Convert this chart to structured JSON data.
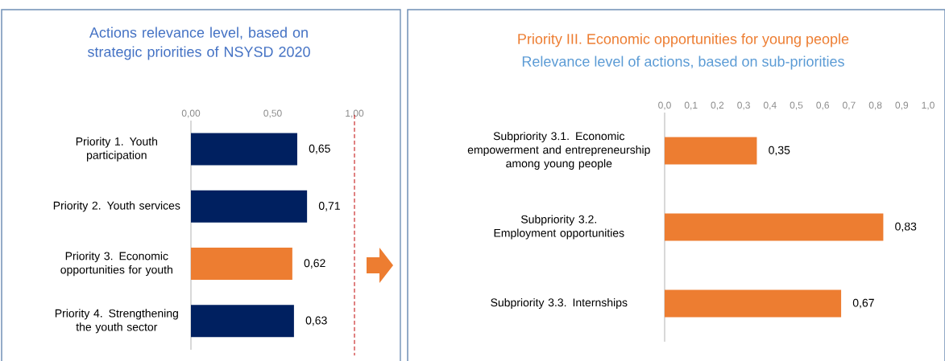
{
  "chart_data": [
    {
      "type": "bar",
      "orientation": "horizontal",
      "title": "Actions relevance level, based on strategic priorities of NSYSD 2020",
      "categories": [
        "Priority 1. Youth participation",
        "Priority 2. Youth services",
        "Priority 3. Economic opportunities for youth",
        "Priority 4. Strengthening the youth sector"
      ],
      "values": [
        0.65,
        0.71,
        0.62,
        0.63
      ],
      "colors": [
        "#002060",
        "#002060",
        "#ed7d31",
        "#002060"
      ],
      "value_labels": [
        "0,65",
        "0,71",
        "0,62",
        "0,63"
      ],
      "xlim": [
        0,
        1
      ],
      "xticks": [
        {
          "value": 0,
          "label": "0,00"
        },
        {
          "value": 0.5,
          "label": "0,50"
        },
        {
          "value": 1,
          "label": "1,00"
        }
      ],
      "ref_lines": [
        {
          "axis": "x",
          "value": 1,
          "color": "#c00000",
          "line_style": "dashed"
        }
      ],
      "grid": false
    },
    {
      "type": "bar",
      "orientation": "horizontal",
      "title": "Priority III. Economic opportunities for young people",
      "subtitle": "Relevance level of actions, based on sub-priorities",
      "categories": [
        "Subpriority 3.1. Economic empowerment and entrepreneurship among young people",
        "Subpriority 3.2. Employment opportunities",
        "Subpriority 3.3. Internships"
      ],
      "values": [
        0.35,
        0.83,
        0.67
      ],
      "colors": [
        "#ed7d31",
        "#ed7d31",
        "#ed7d31"
      ],
      "value_labels": [
        "0,35",
        "0,83",
        "0,67"
      ],
      "xlim": [
        0,
        1
      ],
      "xticks": [
        {
          "value": 0,
          "label": "0,0"
        },
        {
          "value": 0.1,
          "label": "0,1"
        },
        {
          "value": 0.2,
          "label": "0,2"
        },
        {
          "value": 0.3,
          "label": "0,3"
        },
        {
          "value": 0.4,
          "label": "0,4"
        },
        {
          "value": 0.5,
          "label": "0,5"
        },
        {
          "value": 0.6,
          "label": "0,6"
        },
        {
          "value": 0.7,
          "label": "0,7"
        },
        {
          "value": 0.8,
          "label": "0,8"
        },
        {
          "value": 0.9,
          "label": "0,9"
        },
        {
          "value": 1,
          "label": "1,0"
        }
      ],
      "grid": false
    }
  ]
}
